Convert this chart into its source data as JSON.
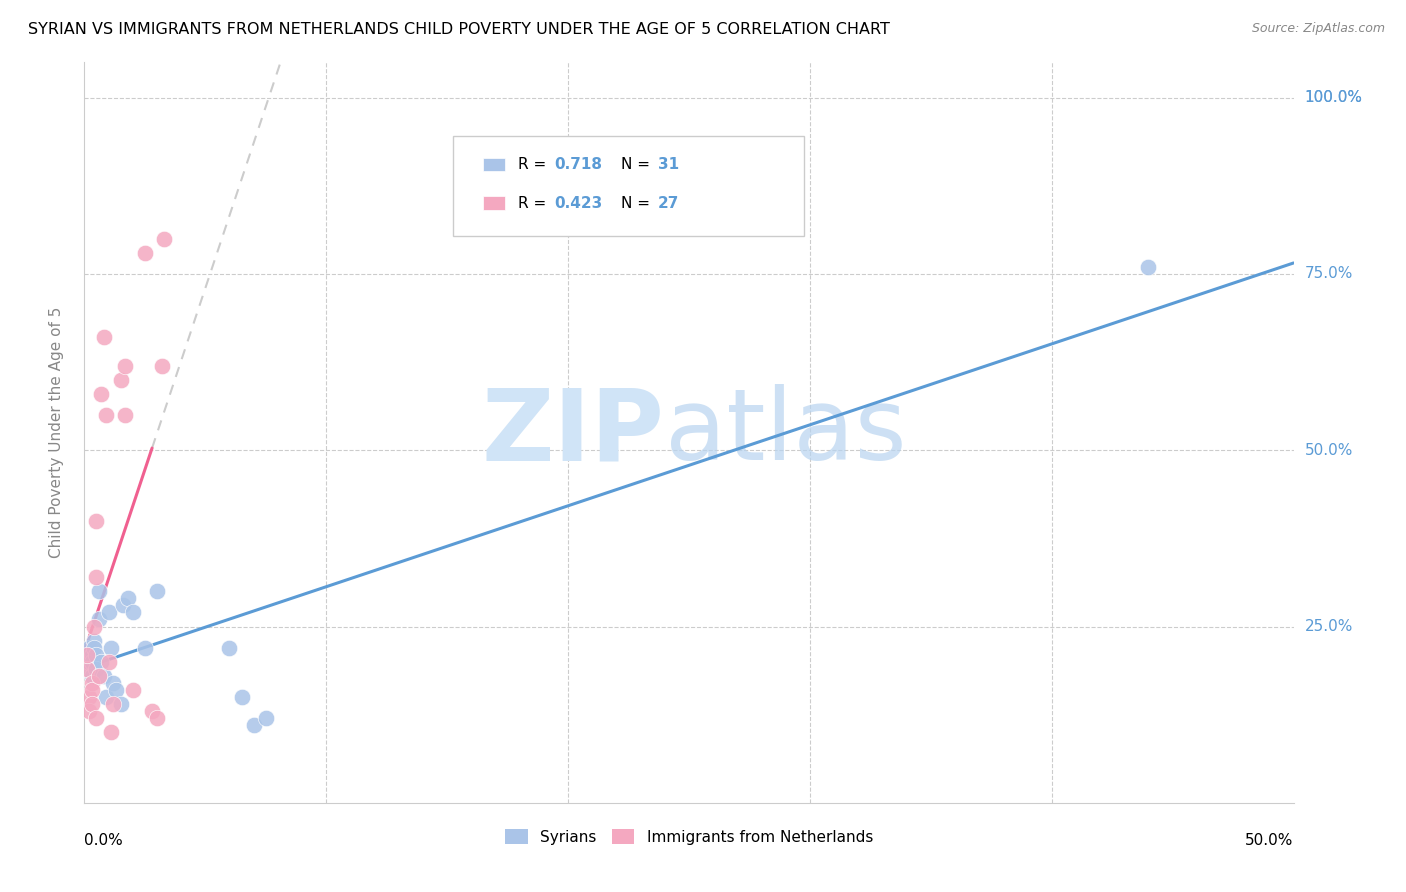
{
  "title": "SYRIAN VS IMMIGRANTS FROM NETHERLANDS CHILD POVERTY UNDER THE AGE OF 5 CORRELATION CHART",
  "source": "Source: ZipAtlas.com",
  "ylabel": "Child Poverty Under the Age of 5",
  "xlim": [
    0.0,
    0.5
  ],
  "ylim": [
    0.0,
    1.05
  ],
  "color_syrians": "#aac4e8",
  "color_netherlands": "#f4a8c0",
  "color_line_syrians": "#5b9bd5",
  "color_line_netherlands": "#f06090",
  "color_line_netherlands_dash": "#cccccc",
  "watermark_zip_color": "#d0e4f7",
  "watermark_atlas_color": "#b8d4f0",
  "ytick_values": [
    0.0,
    0.25,
    0.5,
    0.75,
    1.0
  ],
  "ytick_labels_right": [
    "0.0%",
    "25.0%",
    "50.0%",
    "75.0%",
    "100.0%"
  ],
  "xtick_values": [
    0.0,
    0.1,
    0.2,
    0.3,
    0.4,
    0.5
  ],
  "syrians_x": [
    0.001,
    0.001,
    0.002,
    0.002,
    0.003,
    0.003,
    0.003,
    0.004,
    0.004,
    0.005,
    0.005,
    0.006,
    0.006,
    0.007,
    0.008,
    0.009,
    0.01,
    0.011,
    0.012,
    0.013,
    0.015,
    0.016,
    0.018,
    0.02,
    0.025,
    0.03,
    0.06,
    0.065,
    0.07,
    0.075,
    0.44
  ],
  "syrians_y": [
    0.19,
    0.21,
    0.2,
    0.22,
    0.21,
    0.2,
    0.18,
    0.23,
    0.22,
    0.21,
    0.19,
    0.26,
    0.3,
    0.2,
    0.18,
    0.15,
    0.27,
    0.22,
    0.17,
    0.16,
    0.14,
    0.28,
    0.29,
    0.27,
    0.22,
    0.3,
    0.22,
    0.15,
    0.11,
    0.12,
    0.76
  ],
  "netherlands_x": [
    0.001,
    0.001,
    0.002,
    0.002,
    0.003,
    0.003,
    0.003,
    0.004,
    0.005,
    0.005,
    0.005,
    0.006,
    0.007,
    0.008,
    0.009,
    0.01,
    0.011,
    0.012,
    0.015,
    0.017,
    0.017,
    0.02,
    0.025,
    0.028,
    0.03,
    0.032,
    0.033
  ],
  "netherlands_y": [
    0.19,
    0.21,
    0.15,
    0.13,
    0.17,
    0.16,
    0.14,
    0.25,
    0.32,
    0.4,
    0.12,
    0.18,
    0.58,
    0.66,
    0.55,
    0.2,
    0.1,
    0.14,
    0.6,
    0.55,
    0.62,
    0.16,
    0.78,
    0.13,
    0.12,
    0.62,
    0.8
  ],
  "trend_line_blue_x0": 0.0,
  "trend_line_blue_x1": 0.5,
  "trend_line_pink_x0": 0.0,
  "trend_line_pink_x1": 0.028,
  "trend_line_dash_x0": 0.028,
  "trend_line_dash_x1": 0.12
}
